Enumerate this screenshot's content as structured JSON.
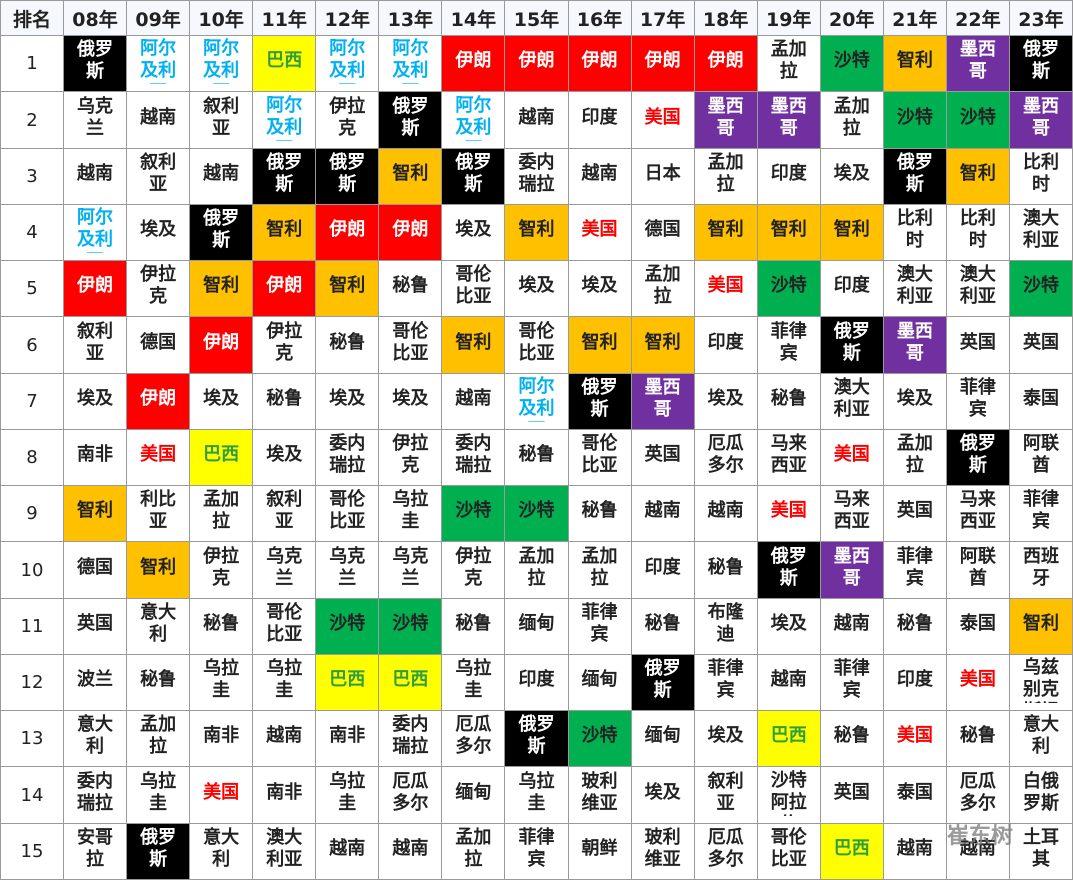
{
  "table": {
    "header": [
      "排名",
      "08年",
      "09年",
      "10年",
      "11年",
      "12年",
      "13年",
      "14年",
      "15年",
      "16年",
      "17年",
      "18年",
      "19年",
      "20年",
      "21年",
      "22年",
      "23年"
    ],
    "rows": [
      [
        1,
        "俄罗斯",
        "阿尔及利亚",
        "阿尔及利亚",
        "巴西",
        "阿尔及利亚",
        "阿尔及利亚",
        "伊朗",
        "伊朗",
        "伊朗",
        "伊朗",
        "伊朗",
        "孟加拉",
        "沙特",
        "智利",
        "墨西哥",
        "俄罗斯"
      ],
      [
        2,
        "乌克兰",
        "越南",
        "叙利亚",
        "阿尔及利亚",
        "伊拉克",
        "俄罗斯",
        "阿尔及利亚",
        "越南",
        "印度",
        "美国",
        "墨西哥",
        "墨西哥",
        "孟加拉",
        "沙特",
        "沙特",
        "墨西哥"
      ],
      [
        3,
        "越南",
        "叙利亚",
        "越南",
        "俄罗斯",
        "俄罗斯",
        "智利",
        "俄罗斯",
        "委内瑞拉",
        "越南",
        "日本",
        "孟加拉",
        "印度",
        "埃及",
        "俄罗斯",
        "智利",
        "比利时"
      ],
      [
        4,
        "阿尔及利亚",
        "埃及",
        "俄罗斯",
        "智利",
        "伊朗",
        "伊朗",
        "埃及",
        "智利",
        "美国",
        "德国",
        "智利",
        "智利",
        "智利",
        "比利时",
        "比利时",
        "澳大利亚"
      ],
      [
        5,
        "伊朗",
        "伊拉克",
        "智利",
        "伊朗",
        "智利",
        "秘鲁",
        "哥伦比亚",
        "埃及",
        "埃及",
        "孟加拉",
        "美国",
        "沙特",
        "印度",
        "澳大利亚",
        "澳大利亚",
        "沙特"
      ],
      [
        6,
        "叙利亚",
        "德国",
        "伊朗",
        "伊拉克",
        "秘鲁",
        "哥伦比亚",
        "智利",
        "哥伦比亚",
        "智利",
        "智利",
        "印度",
        "菲律宾",
        "俄罗斯",
        "墨西哥",
        "英国",
        "英国"
      ],
      [
        7,
        "埃及",
        "伊朗",
        "埃及",
        "秘鲁",
        "埃及",
        "埃及",
        "越南",
        "阿尔及利亚",
        "俄罗斯",
        "墨西哥",
        "埃及",
        "秘鲁",
        "澳大利亚",
        "埃及",
        "菲律宾",
        "泰国"
      ],
      [
        8,
        "南非",
        "美国",
        "巴西",
        "埃及",
        "委内瑞拉",
        "伊拉克",
        "委内瑞拉",
        "秘鲁",
        "哥伦比亚",
        "英国",
        "厄瓜多尔",
        "马来西亚",
        "美国",
        "孟加拉",
        "俄罗斯",
        "阿联酋"
      ],
      [
        9,
        "智利",
        "利比亚",
        "孟加拉",
        "叙利亚",
        "哥伦比亚",
        "乌拉圭",
        "沙特",
        "沙特",
        "秘鲁",
        "越南",
        "越南",
        "美国",
        "马来西亚",
        "英国",
        "马来西亚",
        "菲律宾"
      ],
      [
        10,
        "德国",
        "智利",
        "伊拉克",
        "乌克兰",
        "乌克兰",
        "乌克兰",
        "伊拉克",
        "孟加拉",
        "孟加拉",
        "印度",
        "秘鲁",
        "俄罗斯",
        "墨西哥",
        "菲律宾",
        "阿联酋",
        "西班牙"
      ],
      [
        11,
        "英国",
        "意大利",
        "秘鲁",
        "哥伦比亚",
        "沙特",
        "沙特",
        "秘鲁",
        "缅甸",
        "菲律宾",
        "秘鲁",
        "布隆迪",
        "埃及",
        "越南",
        "秘鲁",
        "泰国",
        "智利"
      ],
      [
        12,
        "波兰",
        "秘鲁",
        "乌拉圭",
        "乌拉圭",
        "巴西",
        "巴西",
        "乌拉圭",
        "印度",
        "缅甸",
        "俄罗斯",
        "菲律宾",
        "越南",
        "菲律宾",
        "印度",
        "美国",
        "乌兹别克斯坦"
      ],
      [
        13,
        "意大利",
        "孟加拉",
        "南非",
        "越南",
        "南非",
        "委内瑞拉",
        "厄瓜多尔",
        "俄罗斯",
        "沙特",
        "缅甸",
        "埃及",
        "巴西",
        "秘鲁",
        "美国",
        "秘鲁",
        "意大利"
      ],
      [
        14,
        "委内瑞拉",
        "乌拉圭",
        "美国",
        "南非",
        "乌拉圭",
        "厄瓜多尔",
        "缅甸",
        "乌拉圭",
        "玻利维亚",
        "埃及",
        "叙利亚",
        "沙特阿拉伯",
        "英国",
        "泰国",
        "厄瓜多尔",
        "白俄罗斯"
      ],
      [
        15,
        "安哥拉",
        "俄罗斯",
        "意大利",
        "澳大利亚",
        "越南",
        "越南",
        "孟加拉",
        "菲律宾",
        "朝鲜",
        "玻利维亚",
        "厄瓜多尔",
        "哥伦比亚",
        "巴西",
        "越南",
        "越南",
        "土耳其"
      ]
    ]
  },
  "styles": {
    "俄罗斯": {
      "bg": "#000000",
      "fg": "#ffffff"
    },
    "伊朗": {
      "bg": "#ff0000",
      "fg": "#ffffff"
    },
    "巴西": {
      "bg": "#ffff00",
      "fg": "#2e9e3e"
    },
    "阿尔及利亚": {
      "fg": "#00b0f0"
    },
    "智利": {
      "bg": "#ffc000",
      "fg": "#222222"
    },
    "沙特": {
      "bg": "#00b050",
      "fg": "#222222"
    },
    "墨西哥": {
      "bg": "#7030a0",
      "fg": "#ffffff"
    },
    "美国": {
      "fg": "#ff0000"
    }
  },
  "watermark": "崔东树"
}
